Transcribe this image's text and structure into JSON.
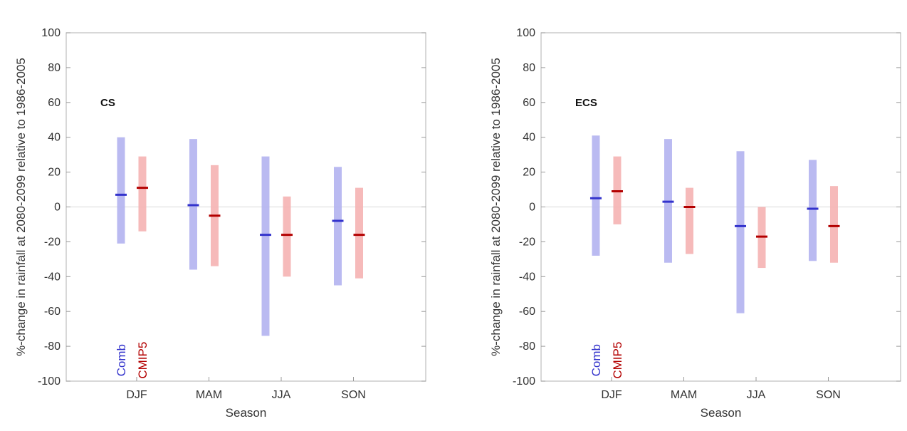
{
  "chart_data": [
    {
      "type": "bar",
      "panel_label": "CS",
      "xlabel": "Season",
      "ylabel": "%-change in rainfall at 2080-2099 relative to 1986-2005",
      "ylim": [
        -100,
        100
      ],
      "yticks": [
        -100,
        -80,
        -60,
        -40,
        -20,
        0,
        20,
        40,
        60,
        80,
        100
      ],
      "categories": [
        "DJF",
        "MAM",
        "JJA",
        "SON"
      ],
      "legend": [
        "Comb",
        "CMIP5"
      ],
      "series": [
        {
          "name": "Comb",
          "color": "#3333cc",
          "range_color": "#b3b3f0",
          "low": [
            -21,
            -36,
            -74,
            -45
          ],
          "high": [
            40,
            39,
            29,
            23
          ],
          "center": [
            7,
            1,
            -16,
            -8
          ]
        },
        {
          "name": "CMIP5",
          "color": "#b30000",
          "range_color": "#f5b3b3",
          "low": [
            -14,
            -34,
            -40,
            -41
          ],
          "high": [
            29,
            24,
            6,
            11
          ],
          "center": [
            11,
            -5,
            -16,
            -16
          ]
        }
      ]
    },
    {
      "type": "bar",
      "panel_label": "ECS",
      "xlabel": "Season",
      "ylabel": "%-change in rainfall at 2080-2099 relative to 1986-2005",
      "ylim": [
        -100,
        100
      ],
      "yticks": [
        -100,
        -80,
        -60,
        -40,
        -20,
        0,
        20,
        40,
        60,
        80,
        100
      ],
      "categories": [
        "DJF",
        "MAM",
        "JJA",
        "SON"
      ],
      "legend": [
        "Comb",
        "CMIP5"
      ],
      "series": [
        {
          "name": "Comb",
          "color": "#3333cc",
          "range_color": "#b3b3f0",
          "low": [
            -28,
            -32,
            -61,
            -31
          ],
          "high": [
            41,
            39,
            32,
            27
          ],
          "center": [
            5,
            3,
            -11,
            -1
          ]
        },
        {
          "name": "CMIP5",
          "color": "#b30000",
          "range_color": "#f5b3b3",
          "low": [
            -10,
            -27,
            -35,
            -32
          ],
          "high": [
            29,
            11,
            0,
            12
          ],
          "center": [
            9,
            0,
            -17,
            -11
          ]
        }
      ]
    }
  ]
}
